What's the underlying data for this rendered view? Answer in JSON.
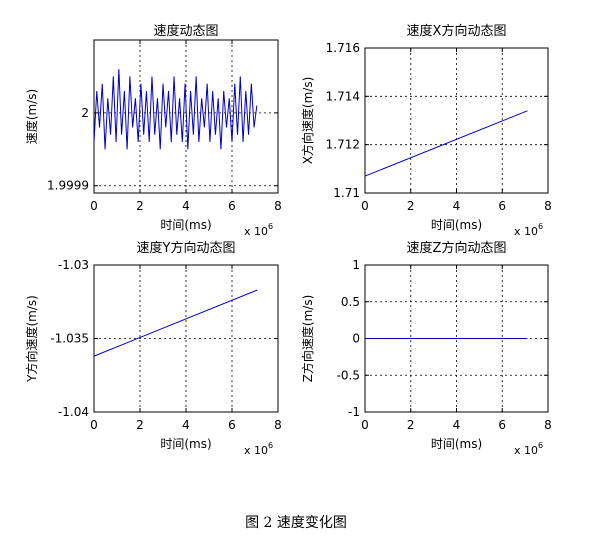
{
  "caption": "图 2  速度变化图",
  "chart_data": [
    {
      "type": "line",
      "title": "速度动态图",
      "xlabel": "时间(ms)",
      "ylabel": "速度(m/s)",
      "x_multiplier": "x 10^6",
      "xlim": [
        0,
        8
      ],
      "ylim": [
        1.99989,
        2.0001
      ],
      "xticks": [
        "0",
        "2",
        "4",
        "6",
        "8"
      ],
      "yticks": [
        {
          "v": 1.9999,
          "t": "1.9999"
        },
        {
          "v": 2.0,
          "t": "2"
        }
      ],
      "grid": true,
      "series": [
        {
          "color": "#0000cc",
          "x": [
            0,
            0.12,
            0.24,
            0.36,
            0.48,
            0.6,
            0.72,
            0.84,
            0.96,
            1.08,
            1.2,
            1.32,
            1.44,
            1.56,
            1.68,
            1.8,
            1.92,
            2.04,
            2.16,
            2.28,
            2.4,
            2.52,
            2.64,
            2.76,
            2.88,
            3.0,
            3.12,
            3.24,
            3.36,
            3.48,
            3.6,
            3.72,
            3.84,
            3.96,
            4.08,
            4.2,
            4.32,
            4.44,
            4.56,
            4.68,
            4.8,
            4.92,
            5.04,
            5.16,
            5.28,
            5.4,
            5.52,
            5.64,
            5.76,
            5.88,
            6.0,
            6.12,
            6.24,
            6.36,
            6.48,
            6.6,
            6.72,
            6.84,
            6.96,
            7.08
          ],
          "y": [
            1.99996,
            2.00003,
            1.99998,
            2.00004,
            1.99995,
            2.00002,
            1.99997,
            2.00005,
            1.99996,
            2.00006,
            1.99997,
            2.00003,
            1.99995,
            2.00005,
            1.99998,
            2.00002,
            1.99996,
            2.00004,
            1.99997,
            2.00003,
            1.99996,
            2.00005,
            1.99997,
            2.00002,
            1.99995,
            2.00004,
            1.99998,
            2.00003,
            1.99996,
            2.00005,
            1.99997,
            2.00002,
            1.99996,
            2.00004,
            1.99995,
            2.00003,
            1.99997,
            2.00005,
            1.99996,
            2.00002,
            1.99998,
            2.00004,
            1.99996,
            2.00003,
            1.99997,
            2.00002,
            1.99995,
            2.00003,
            1.99998,
            2.00002,
            1.99996,
            2.00004,
            1.99997,
            2.00005,
            1.99996,
            2.00003,
            1.99997,
            2.00004,
            1.99998,
            2.00001
          ]
        }
      ]
    },
    {
      "type": "line",
      "title": "速度X方向动态图",
      "xlabel": "时间(ms)",
      "ylabel": "X方向速度(m/s)",
      "x_multiplier": "x 10^6",
      "xlim": [
        0,
        8
      ],
      "ylim": [
        1.71,
        1.716
      ],
      "xticks": [
        "0",
        "2",
        "4",
        "6",
        "8"
      ],
      "yticks": [
        {
          "v": 1.71,
          "t": "1.71"
        },
        {
          "v": 1.712,
          "t": "1.712"
        },
        {
          "v": 1.714,
          "t": "1.714"
        },
        {
          "v": 1.716,
          "t": "1.716"
        }
      ],
      "grid": true,
      "series": [
        {
          "color": "#0000cc",
          "x": [
            0,
            7.1
          ],
          "y": [
            1.7107,
            1.7134
          ]
        }
      ]
    },
    {
      "type": "line",
      "title": "速度Y方向动态图",
      "xlabel": "时间(ms)",
      "ylabel": "Y方向速度(m/s)",
      "x_multiplier": "x 10^6",
      "xlim": [
        0,
        8
      ],
      "ylim": [
        -1.04,
        -1.03
      ],
      "xticks": [
        "0",
        "2",
        "4",
        "6",
        "8"
      ],
      "yticks": [
        {
          "v": -1.04,
          "t": "-1.04"
        },
        {
          "v": -1.035,
          "t": "-1.035"
        },
        {
          "v": -1.03,
          "t": "-1.03"
        }
      ],
      "grid": true,
      "series": [
        {
          "color": "#0000cc",
          "x": [
            0,
            7.1
          ],
          "y": [
            -1.0362,
            -1.0317
          ]
        }
      ]
    },
    {
      "type": "line",
      "title": "速度Z方向动态图",
      "xlabel": "时间(ms)",
      "ylabel": "Z方向速度(m/s)",
      "x_multiplier": "x 10^6",
      "xlim": [
        0,
        8
      ],
      "ylim": [
        -1,
        1
      ],
      "xticks": [
        "0",
        "2",
        "4",
        "6",
        "8"
      ],
      "yticks": [
        {
          "v": -1,
          "t": "-1"
        },
        {
          "v": -0.5,
          "t": "-0.5"
        },
        {
          "v": 0,
          "t": "0"
        },
        {
          "v": 0.5,
          "t": "0.5"
        },
        {
          "v": 1,
          "t": "1"
        }
      ],
      "grid": true,
      "series": [
        {
          "color": "#0000cc",
          "x": [
            0,
            7.1
          ],
          "y": [
            0,
            0
          ]
        }
      ]
    }
  ]
}
